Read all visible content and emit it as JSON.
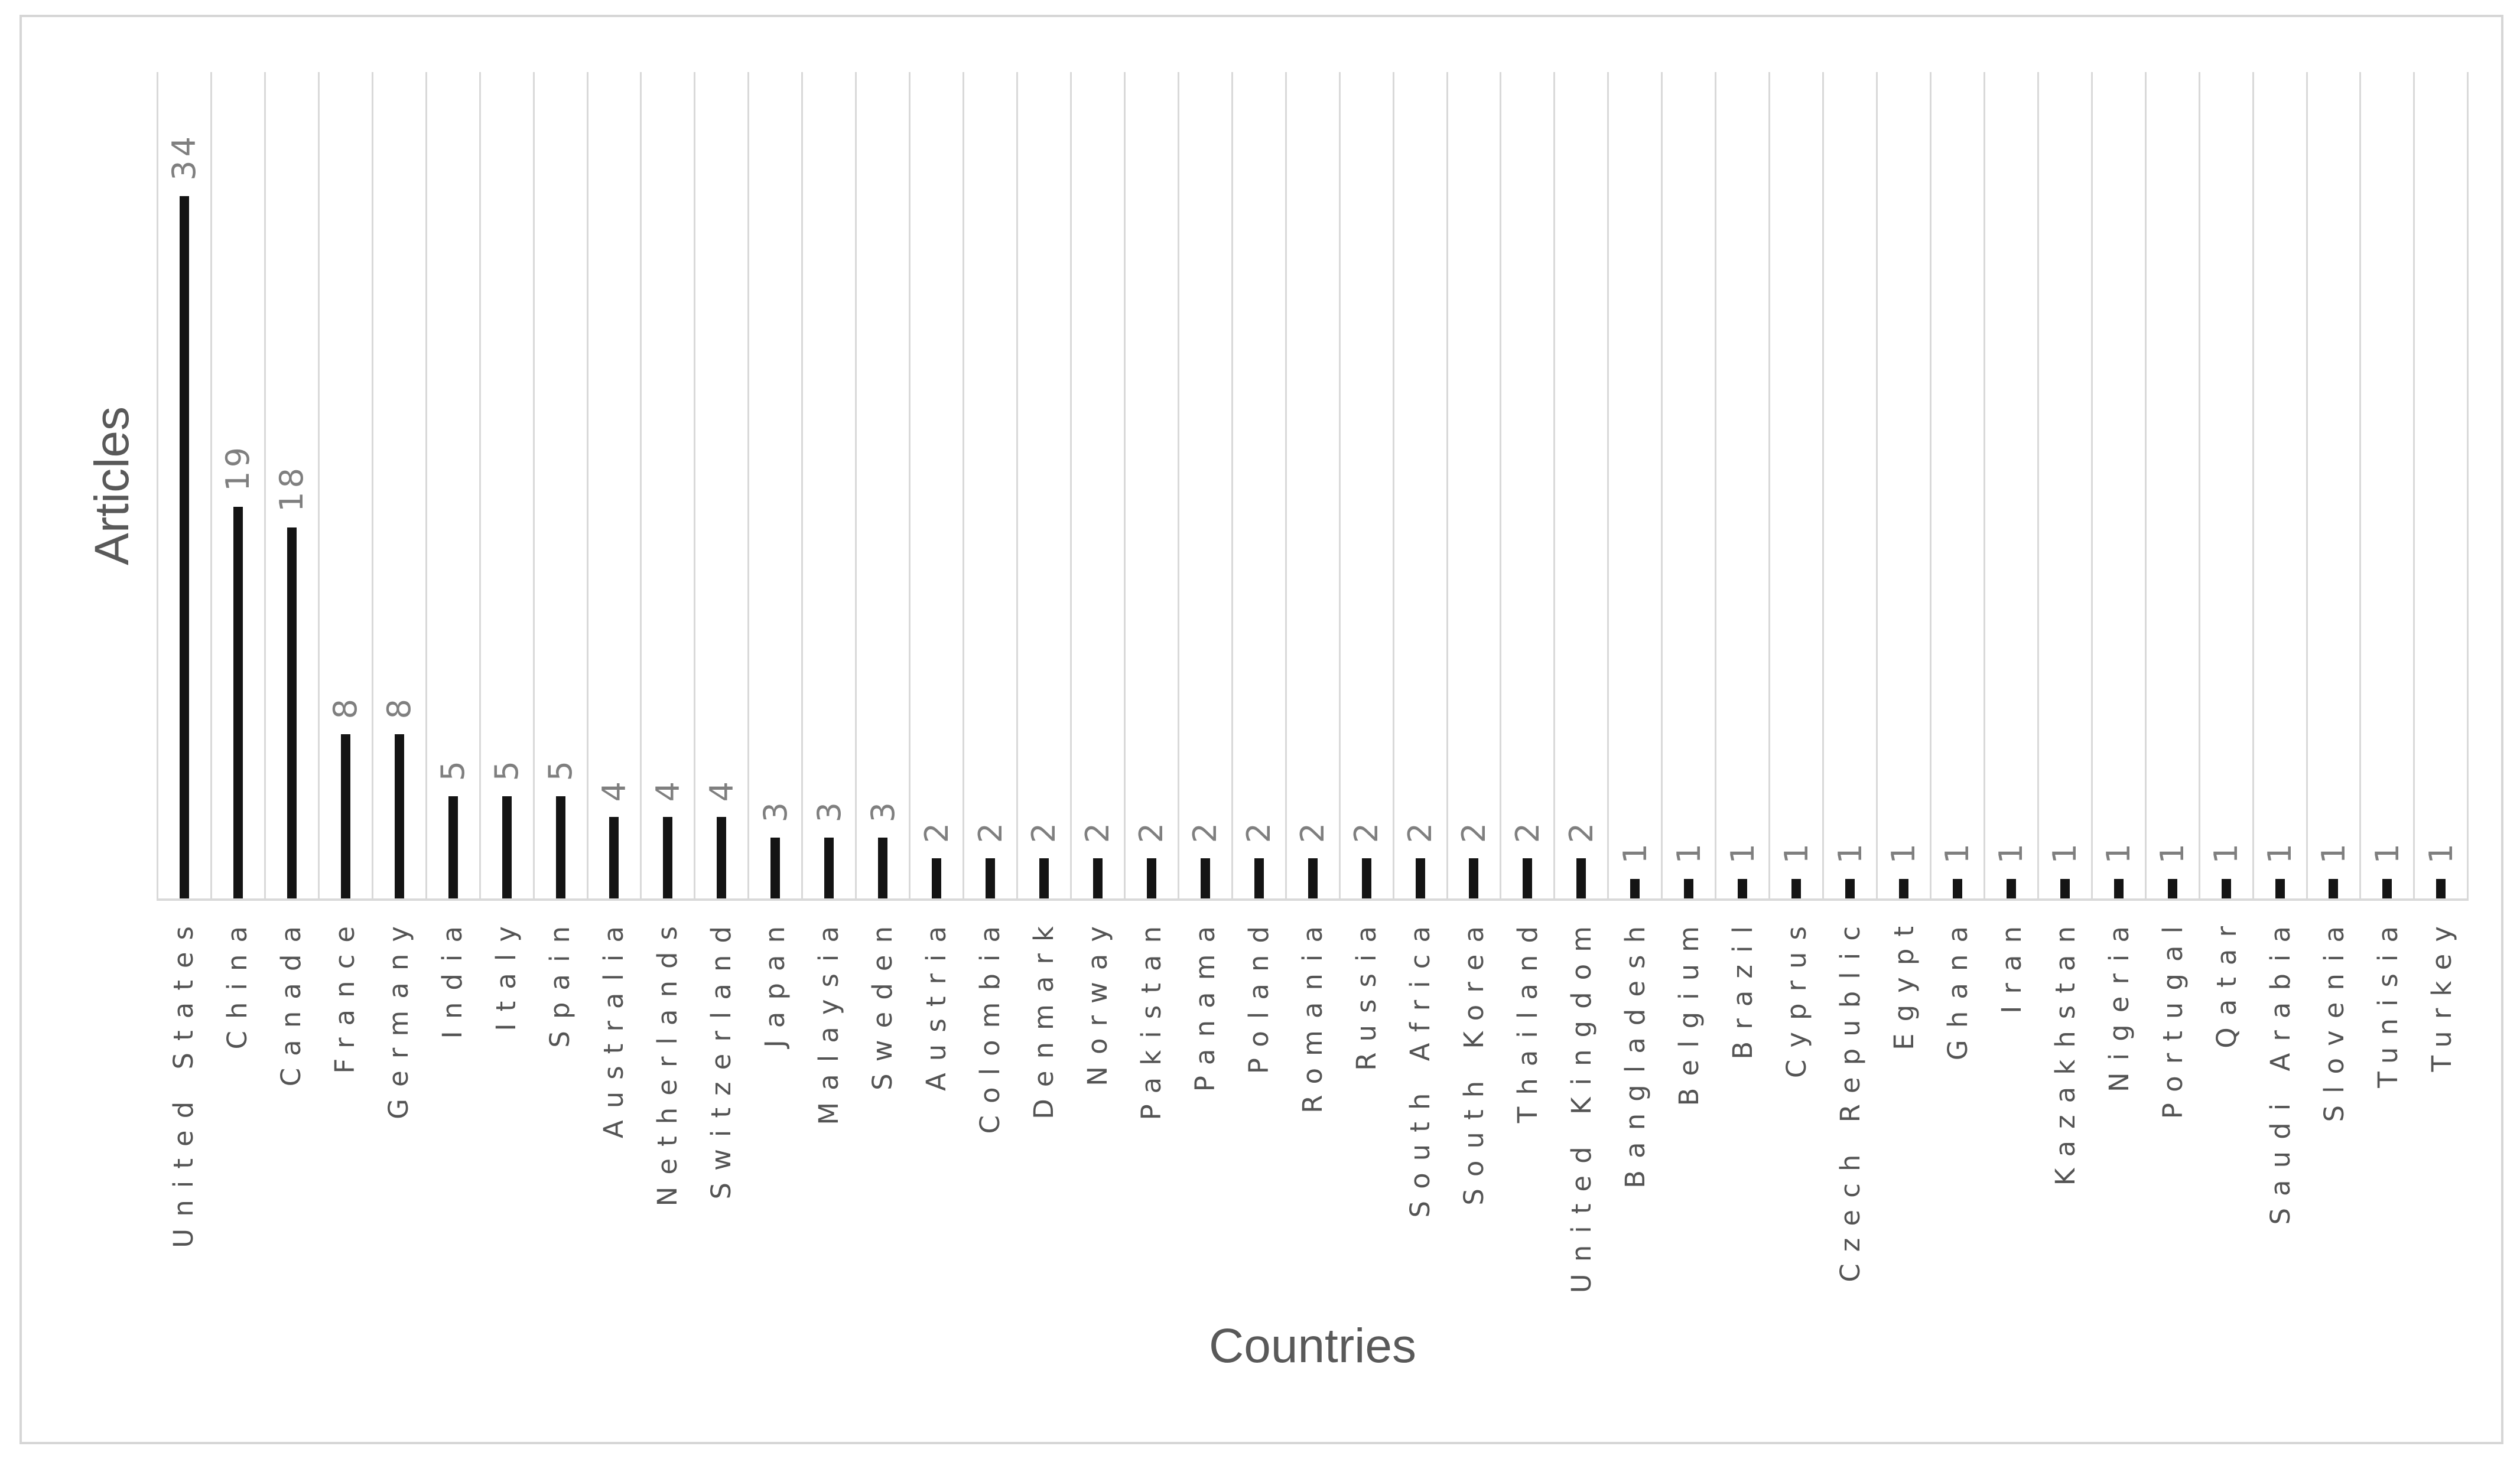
{
  "chart_data": {
    "type": "bar",
    "title": "",
    "xlabel": "Countries",
    "ylabel": "Articles",
    "ylim": [
      0,
      40
    ],
    "grid": "vertical-category-separators",
    "legend": "none",
    "bar_color": "#141414",
    "gridline_color": "#d9d9d9",
    "value_label_color": "#7f7f7f",
    "tick_label_color": "#545454",
    "categories": [
      "United States",
      "China",
      "Canada",
      "France",
      "Germany",
      "India",
      "Italy",
      "Spain",
      "Australia",
      "Netherlands",
      "Switzerland",
      "Japan",
      "Malaysia",
      "Sweden",
      "Austria",
      "Colombia",
      "Denmark",
      "Norway",
      "Pakistan",
      "Panama",
      "Poland",
      "Romania",
      "Russia",
      "South Africa",
      "South Korea",
      "Thailand",
      "United Kingdom",
      "Bangladesh",
      "Belgium",
      "Brazil",
      "Cyprus",
      "Czech Republic",
      "Egypt",
      "Ghana",
      "Iran",
      "Kazakhstan",
      "Nigeria",
      "Portugal",
      "Qatar",
      "Saudi Arabia",
      "Slovenia",
      "Tunisia",
      "Turkey"
    ],
    "values": [
      34,
      19,
      18,
      8,
      8,
      5,
      5,
      5,
      4,
      4,
      4,
      3,
      3,
      3,
      2,
      2,
      2,
      2,
      2,
      2,
      2,
      2,
      2,
      2,
      2,
      2,
      2,
      1,
      1,
      1,
      1,
      1,
      1,
      1,
      1,
      1,
      1,
      1,
      1,
      1,
      1,
      1,
      1
    ]
  },
  "axes": {
    "y_title": "Articles",
    "x_title": "Countries"
  }
}
